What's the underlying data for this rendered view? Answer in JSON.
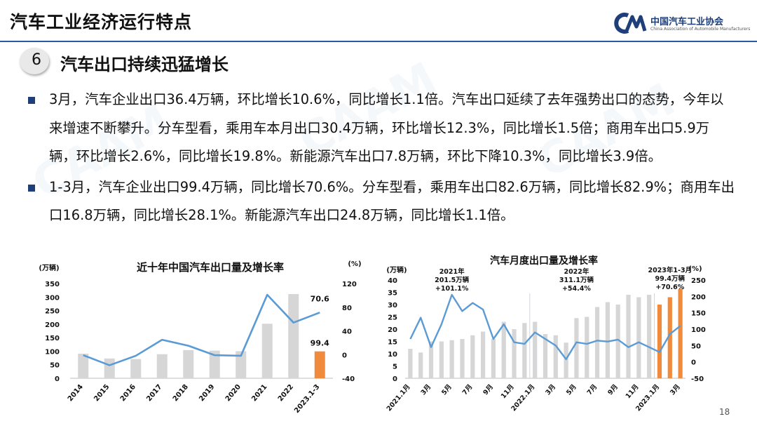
{
  "header": {
    "title": "汽车工业经济运行特点",
    "logo_cn": "中国汽车工业协会",
    "logo_en": "China Association of Automobile Manufacturers"
  },
  "section": {
    "number": "6",
    "title": "汽车出口持续迅猛增长"
  },
  "bullets": [
    "3月，汽车企业出口36.4万辆，环比增长10.6%，同比增长1.1倍。汽车出口延续了去年强势出口的态势，今年以来增速不断攀升。分车型看，乘用车本月出口30.4万辆，环比增长12.3%，同比增长1.5倍；商用车出口5.9万辆，环比增长2.6%，同比增长19.8%。新能源汽车出口7.8万辆，环比下降10.3%，同比增长3.9倍。",
    "1-3月，汽车企业出口99.4万辆，同比增长70.6%。分车型看，乘用车出口82.6万辆，同比增长82.9%；商用车出口16.8万辆，同比增长28.1%。新能源汽车出口24.8万辆，同比增长1.1倍。"
  ],
  "page_number": "18",
  "chart_data": [
    {
      "type": "bar+line",
      "title": "近十年中国汽车出口量及增长率",
      "ylabel_left": "(万辆)",
      "ylabel_right": "(%)",
      "ylim_left": [
        0,
        350
      ],
      "ylim_right": [
        -40,
        120
      ],
      "left_ticks": [
        "350",
        "300",
        "250",
        "200",
        "150",
        "100",
        "50",
        "0"
      ],
      "right_ticks": [
        "120",
        "80",
        "40",
        "0",
        "-40"
      ],
      "categories": [
        "2014",
        "2015",
        "2016",
        "2017",
        "2018",
        "2019",
        "2020",
        "2021",
        "2022",
        "2023.1-3"
      ],
      "bars": [
        91,
        73,
        71,
        89,
        104,
        102,
        100,
        201.5,
        311.1,
        99.4
      ],
      "growth": [
        -1,
        -18,
        -2,
        25,
        15,
        -1,
        -2,
        101,
        54,
        71
      ],
      "bar_labels": [
        "",
        "",
        "",
        "",
        "",
        "",
        "",
        "",
        "",
        "99.4"
      ],
      "line_labels": [
        "",
        "",
        "",
        "",
        "",
        "",
        "",
        "",
        "",
        "70.6"
      ],
      "colors": {
        "bar": "#d6d6d6",
        "highlight": "#f08a3c",
        "line": "#5b9bd5"
      }
    },
    {
      "type": "bar+line",
      "title": "汽车月度出口量及增长率",
      "ylabel_left": "(万辆)",
      "ylabel_right": "(%)",
      "ylim_left": [
        0,
        40
      ],
      "ylim_right": [
        -50,
        250
      ],
      "left_ticks": [
        "40",
        "35",
        "30",
        "25",
        "20",
        "15",
        "10",
        "5",
        "0"
      ],
      "right_ticks": [
        "250",
        "200",
        "150",
        "100",
        "50",
        "0",
        "-50"
      ],
      "x_labels": [
        "2021.1月",
        "3月",
        "5月",
        "7月",
        "9月",
        "11月",
        "2022.1月",
        "3月",
        "5月",
        "7月",
        "9月",
        "11月",
        "2023.1月",
        "3月"
      ],
      "bars": [
        12,
        10.5,
        15,
        15,
        15.5,
        16,
        17.5,
        19,
        16,
        23,
        20,
        22.5,
        23,
        18,
        17.5,
        14.5,
        24.5,
        25,
        29,
        31,
        30,
        34,
        33,
        34,
        30,
        33,
        36.4
      ],
      "growth": [
        70,
        135,
        45,
        115,
        205,
        155,
        180,
        160,
        70,
        115,
        60,
        55,
        90,
        70,
        50,
        8,
        60,
        55,
        65,
        62,
        68,
        45,
        60,
        45,
        30,
        85,
        110
      ],
      "highlight_from": 24,
      "annotations": [
        {
          "lines": [
            "2021年",
            "201.5万辆",
            "+101.1%"
          ]
        },
        {
          "lines": [
            "2022年",
            "311.1万辆",
            "+54.4%"
          ]
        },
        {
          "lines": [
            "2023年1-3月",
            "99.4万辆",
            "+70.6%"
          ]
        }
      ],
      "colors": {
        "bar": "#d6d6d6",
        "highlight": "#f08a3c",
        "line": "#5b9bd5"
      }
    }
  ]
}
